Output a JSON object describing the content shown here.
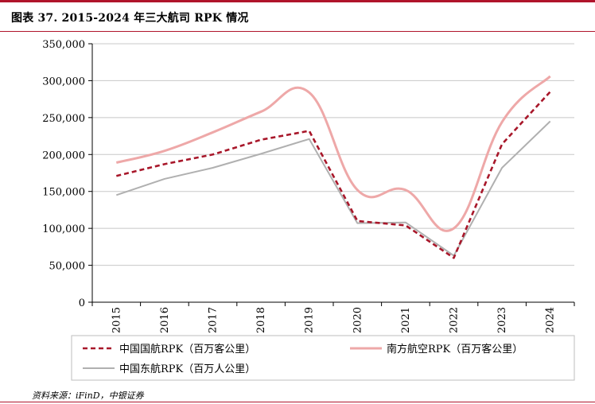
{
  "header": {
    "title": "图表 37. 2015-2024 年三大航司 RPK 情况",
    "accent_color": "#b0142b"
  },
  "source": "资料来源：iFinD，中银证券",
  "chart_data": {
    "type": "line",
    "title": "图表 37. 2015-2024 年三大航司 RPK 情况",
    "xlabel": "",
    "ylabel": "",
    "categories": [
      "2015",
      "2016",
      "2017",
      "2018",
      "2019",
      "2020",
      "2021",
      "2022",
      "2023",
      "2024"
    ],
    "ylim": [
      0,
      350000
    ],
    "yticks": [
      0,
      50000,
      100000,
      150000,
      200000,
      250000,
      300000,
      350000
    ],
    "ytick_labels": [
      "0",
      "50,000",
      "100,000",
      "150,000",
      "200,000",
      "250,000",
      "300,000",
      "350,000"
    ],
    "grid": true,
    "legend_position": "bottom",
    "series": [
      {
        "name": "中国国航RPK（百万客公里）",
        "values": [
          171000,
          187000,
          200000,
          220000,
          232000,
          110000,
          104000,
          60000,
          214000,
          285000
        ],
        "color": "#a8172a",
        "style": "dashed",
        "smooth": false
      },
      {
        "name": "南方航空RPK（百万客公里）",
        "values": [
          189000,
          205000,
          230000,
          258000,
          284000,
          152000,
          152000,
          100000,
          244000,
          306000
        ],
        "color": "#eea8a8",
        "style": "solid",
        "smooth": true
      },
      {
        "name": "中国东航RPK（百万人公里）",
        "values": [
          145000,
          167000,
          182000,
          201000,
          221000,
          107000,
          108000,
          63000,
          182000,
          245000
        ],
        "color": "#b0b0b0",
        "style": "solid",
        "smooth": false
      }
    ]
  }
}
